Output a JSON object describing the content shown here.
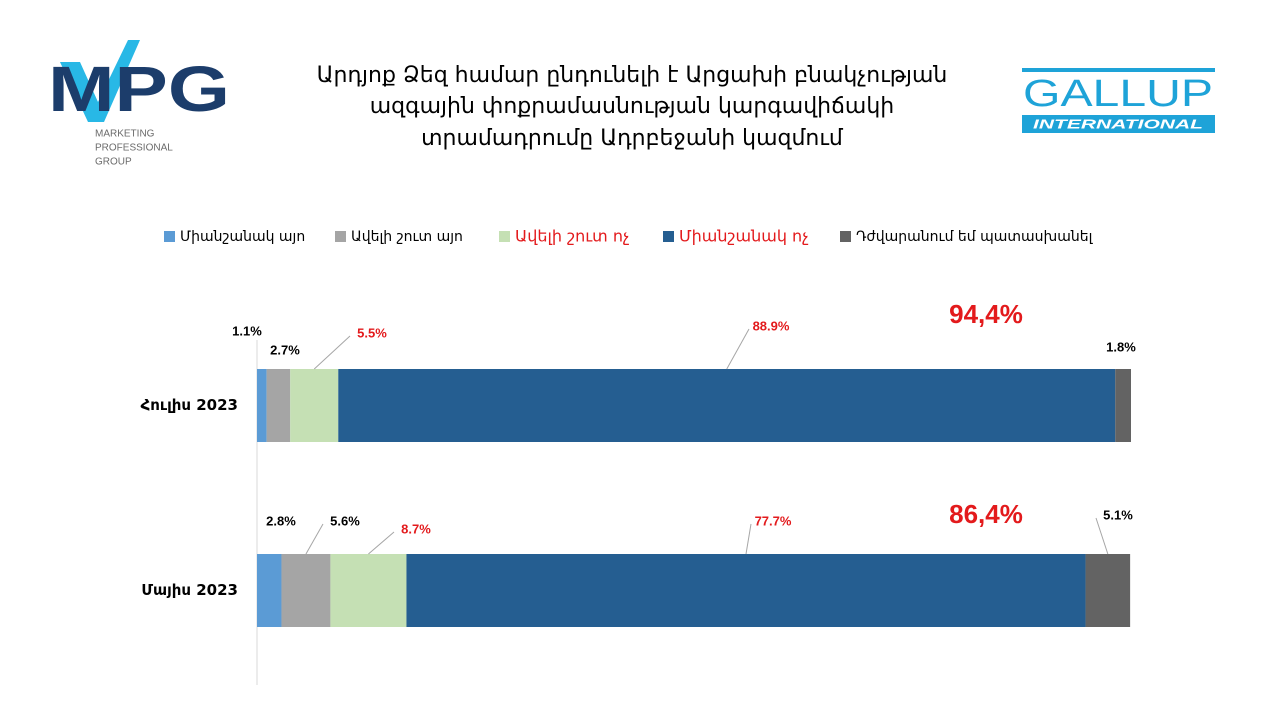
{
  "logos": {
    "mpg": {
      "name": "MPG",
      "tagline": [
        "MARKETING",
        "PROFESSIONAL",
        "GROUP"
      ]
    },
    "gallup": {
      "name": "GALLUP",
      "subtitle": "INTERNATIONAL"
    }
  },
  "chart_data": {
    "type": "bar",
    "orientation": "horizontal",
    "stacked": true,
    "title": [
      "Արդյոք Ձեզ համար ընդունելի է Արցախի բնակչության",
      "ազգային փոքրամասնության կարգավիճակի",
      "տրամադրումը Ադրբեջանի կազմում"
    ],
    "categories": [
      "Հուլիս 2023",
      "Մայիս 2023"
    ],
    "xlim": [
      0,
      100
    ],
    "series": [
      {
        "name": "Միանշանակ այո",
        "color": "#5b9bd5",
        "label_color": "#000000",
        "values": [
          1.1,
          2.8
        ],
        "value_labels": [
          "1.1%",
          "2.8%"
        ]
      },
      {
        "name": "Ավելի շուտ այո",
        "color": "#a5a5a5",
        "label_color": "#000000",
        "values": [
          2.7,
          5.6
        ],
        "value_labels": [
          "2.7%",
          "5.6%"
        ]
      },
      {
        "name": "Ավելի շուտ ոչ",
        "color": "#c5e0b4",
        "label_color": "#e31a1c",
        "values": [
          5.5,
          8.7
        ],
        "value_labels": [
          "5.5%",
          "8.7%"
        ]
      },
      {
        "name": "Միանշանակ ոչ",
        "color": "#255e91",
        "label_color": "#e31a1c",
        "values": [
          88.9,
          77.7
        ],
        "value_labels": [
          "88.9%",
          "77.7%"
        ]
      },
      {
        "name": "Դժվարանում եմ պատասխանել",
        "color": "#636363",
        "label_color": "#000000",
        "values": [
          1.8,
          5.1
        ],
        "value_labels": [
          "1.8%",
          "5.1%"
        ]
      }
    ],
    "annotations": [
      "94,4%",
      "86,4%"
    ],
    "annotation_color": "#e31a1c"
  }
}
